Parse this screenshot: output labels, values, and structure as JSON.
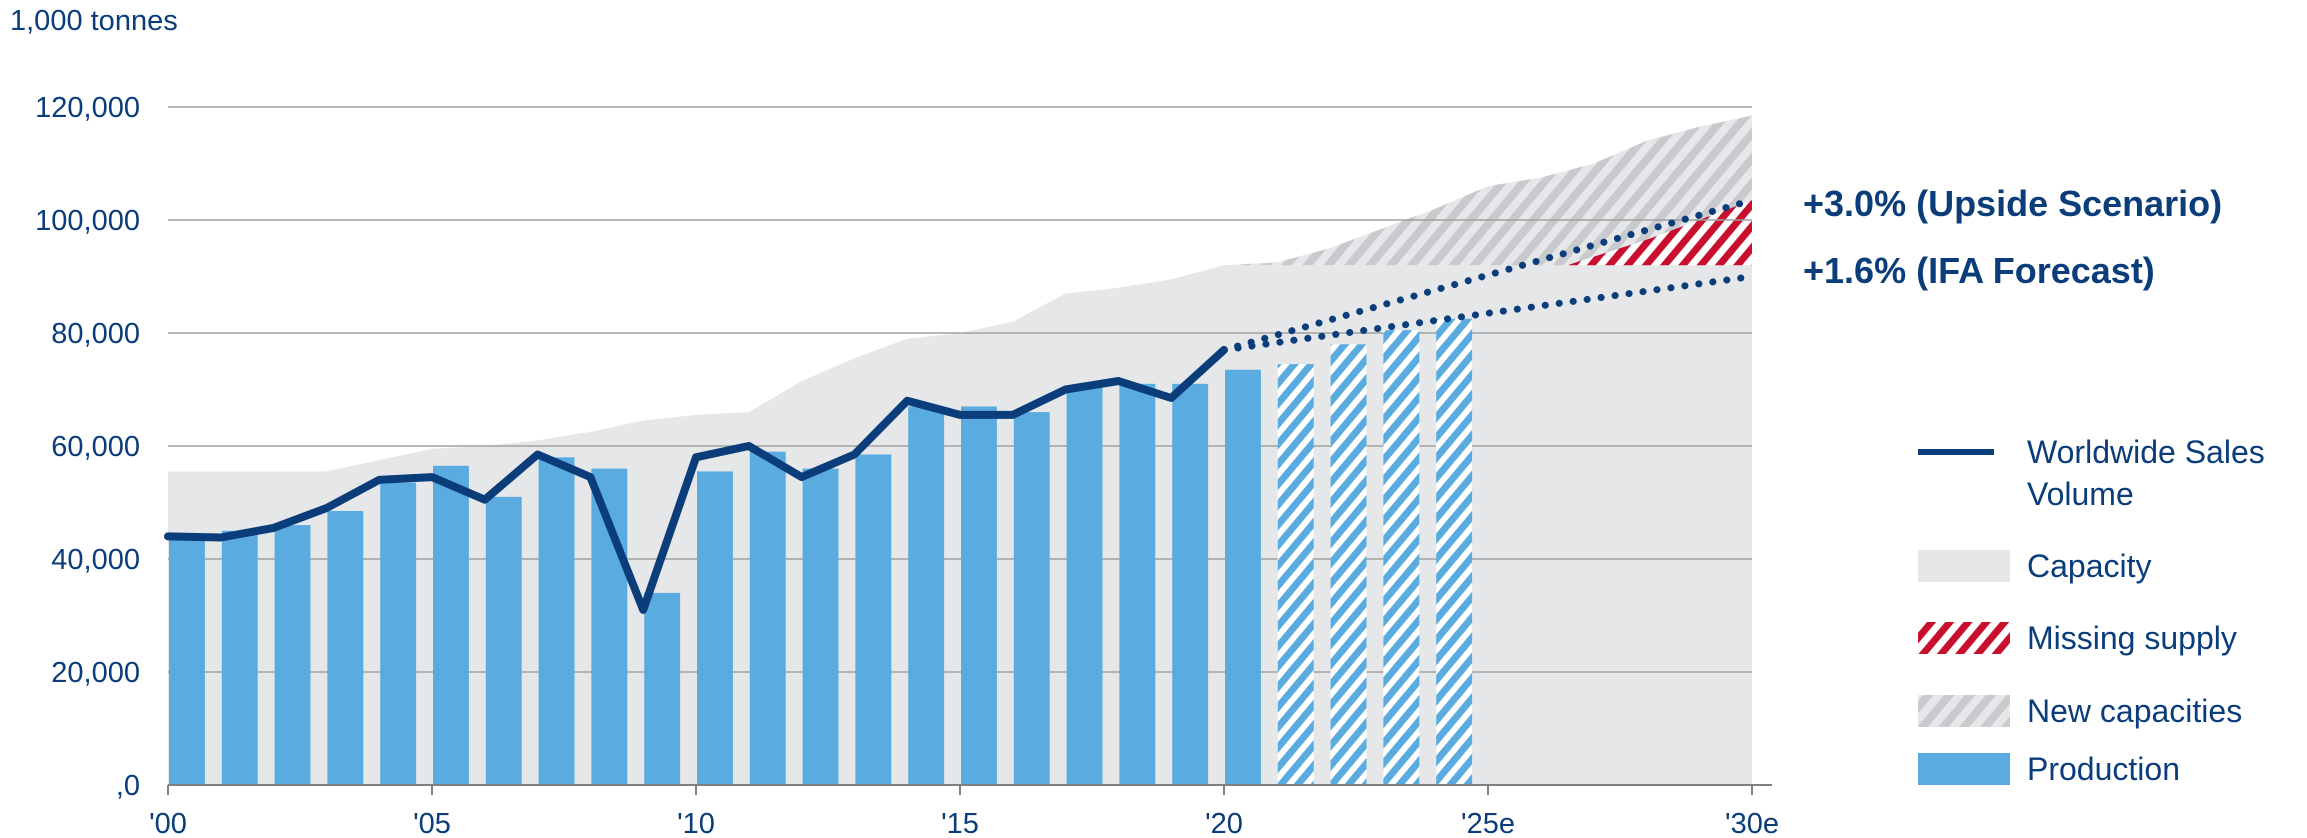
{
  "colors": {
    "text": "#0a3d7a",
    "sales_line": "#0a3d7a",
    "capacity": "#e6e7e9",
    "production": "#5aace0",
    "missing_supply": "#c8102e",
    "new_capacities": "#c9cacd",
    "gridline": "#a0a0a0"
  },
  "chart_data": {
    "type": "bar",
    "unit_label": "1,000 tonnes",
    "ylim": [
      0,
      120000
    ],
    "y_ticks": [
      0,
      20000,
      40000,
      60000,
      80000,
      100000,
      120000
    ],
    "y_tick_labels": [
      ",0",
      "20,000",
      "40,000",
      "60,000",
      "80,000",
      "100,000",
      "120,000"
    ],
    "x_range": [
      2000,
      2030
    ],
    "x_ticks": [
      2000,
      2005,
      2010,
      2015,
      2020,
      2025,
      2030
    ],
    "x_tick_labels": [
      "'00",
      "'05",
      "'10",
      "'15",
      "'20",
      "'25e",
      "'30e"
    ],
    "production": {
      "name": "Production",
      "years": [
        2000,
        2001,
        2002,
        2003,
        2004,
        2005,
        2006,
        2007,
        2008,
        2009,
        2010,
        2011,
        2012,
        2013,
        2014,
        2015,
        2016,
        2017,
        2018,
        2019,
        2020
      ],
      "values": [
        44000,
        45000,
        46000,
        48500,
        53500,
        56500,
        51000,
        58000,
        56000,
        34000,
        55500,
        59000,
        56000,
        58500,
        67000,
        67000,
        66000,
        70500,
        71000,
        71000,
        73500
      ]
    },
    "production_forecast": {
      "years": [
        2021,
        2022,
        2023,
        2024
      ],
      "values": [
        74500,
        78000,
        80500,
        82500
      ]
    },
    "capacity": {
      "name": "Capacity",
      "years": [
        2000,
        2001,
        2002,
        2003,
        2004,
        2005,
        2006,
        2007,
        2008,
        2009,
        2010,
        2011,
        2012,
        2013,
        2014,
        2015,
        2016,
        2017,
        2018,
        2019,
        2020,
        2021,
        2022,
        2023,
        2024,
        2025,
        2026,
        2027,
        2028,
        2029,
        2030
      ],
      "values": [
        55500,
        55500,
        55500,
        55500,
        57500,
        59500,
        60000,
        61000,
        62500,
        64500,
        65500,
        66000,
        71500,
        75500,
        79000,
        80000,
        82000,
        87000,
        88000,
        89500,
        92000,
        92000,
        92000,
        92000,
        92000,
        92000,
        92000,
        92000,
        92000,
        92000,
        92000
      ]
    },
    "new_capacities": {
      "name": "New capacities",
      "years": [
        2020,
        2021,
        2022,
        2023,
        2024,
        2025,
        2026,
        2027,
        2028,
        2029,
        2030
      ],
      "values": [
        92000,
        92500,
        95000,
        98500,
        102000,
        106000,
        107500,
        110000,
        114000,
        116500,
        118500
      ]
    },
    "missing_supply": {
      "name": "Missing supply",
      "years": [
        2026.5,
        2027,
        2028,
        2029,
        2030
      ],
      "lower": [
        92000,
        92000,
        92000,
        92000,
        92000
      ],
      "upper": [
        92000,
        93500,
        96500,
        100000,
        103500
      ]
    },
    "sales_volume": {
      "name": "Worldwide Sales Volume",
      "years": [
        2000,
        2001,
        2002,
        2003,
        2004,
        2005,
        2006,
        2007,
        2008,
        2009,
        2010,
        2011,
        2012,
        2013,
        2014,
        2015,
        2016,
        2017,
        2018,
        2019,
        2020
      ],
      "values": [
        44000,
        43800,
        45500,
        49000,
        54000,
        54500,
        50500,
        58500,
        54500,
        31000,
        58000,
        60000,
        54500,
        58500,
        68000,
        65500,
        65500,
        70000,
        71500,
        68500,
        77000
      ]
    },
    "forecast_upside": {
      "label": "+3.0% (Upside Scenario)",
      "years": [
        2020,
        2030
      ],
      "values": [
        77000,
        103500
      ]
    },
    "forecast_ifa": {
      "label": "+1.6% (IFA Forecast)",
      "years": [
        2020,
        2030
      ],
      "values": [
        77000,
        90000
      ]
    }
  },
  "legend": [
    {
      "key": "line",
      "label_lines": [
        "Worldwide Sales",
        "Volume"
      ]
    },
    {
      "key": "capacity",
      "label_lines": [
        "Capacity"
      ]
    },
    {
      "key": "missing",
      "label_lines": [
        "Missing supply"
      ]
    },
    {
      "key": "newcap",
      "label_lines": [
        "New capacities"
      ]
    },
    {
      "key": "production",
      "label_lines": [
        "Production"
      ]
    }
  ]
}
